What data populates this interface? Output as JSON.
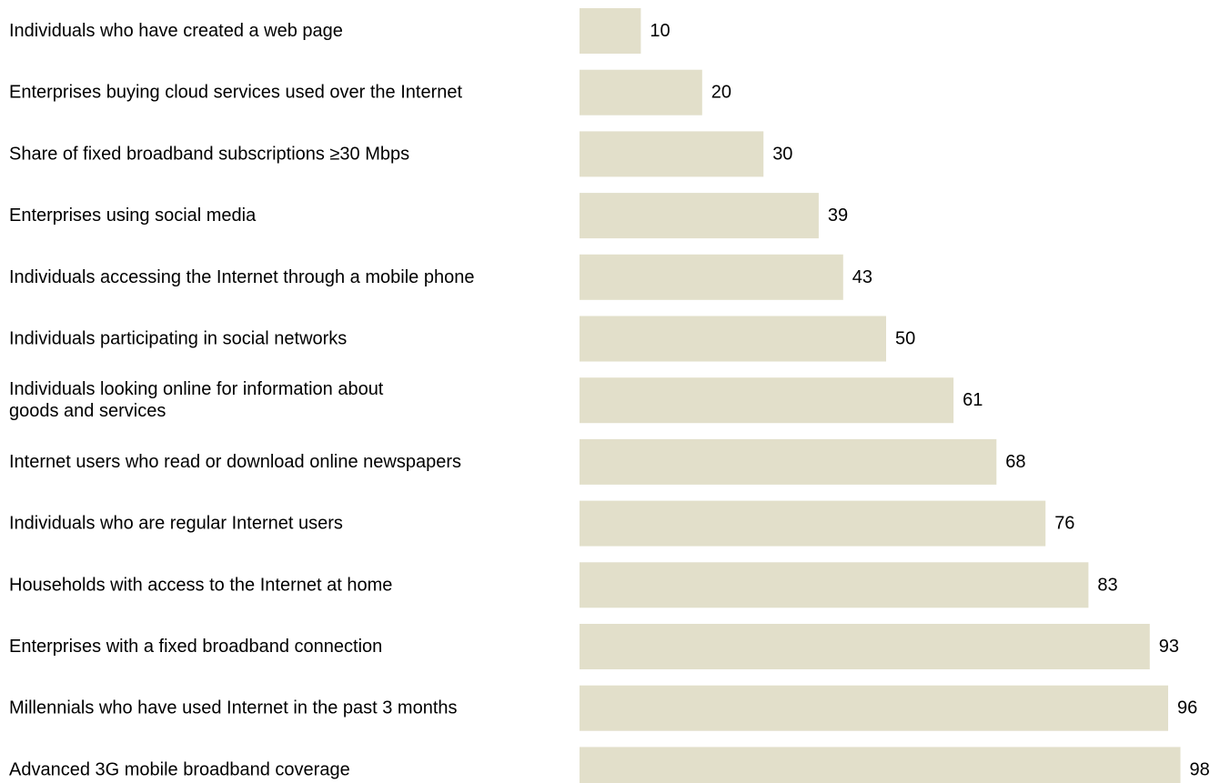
{
  "chart_data": {
    "type": "bar",
    "orientation": "horizontal",
    "categories": [
      [
        "Individuals who have created a web page"
      ],
      [
        "Enterprises buying cloud services used over the Internet"
      ],
      [
        "Share of fixed broadband subscriptions ≥30 Mbps"
      ],
      [
        "Enterprises using social media"
      ],
      [
        "Individuals accessing the Internet through a mobile phone"
      ],
      [
        "Individuals participating in social networks"
      ],
      [
        "Individuals looking online for information about",
        "goods and services"
      ],
      [
        "Internet users who read or download online newspapers"
      ],
      [
        "Individuals who are regular Internet users"
      ],
      [
        "Households with access to the Internet at home"
      ],
      [
        "Enterprises with a fixed broadband connection"
      ],
      [
        "Millennials who have used Internet in the past 3 months"
      ],
      [
        "Advanced 3G mobile broadband coverage"
      ]
    ],
    "values": [
      10,
      20,
      30,
      39,
      43,
      50,
      61,
      68,
      76,
      83,
      93,
      96,
      98
    ],
    "xlim": [
      0,
      100
    ],
    "grid": false,
    "axes_visible": false,
    "data_labels": true,
    "bar_color": "#e2dfca",
    "text_color": "#000000"
  }
}
